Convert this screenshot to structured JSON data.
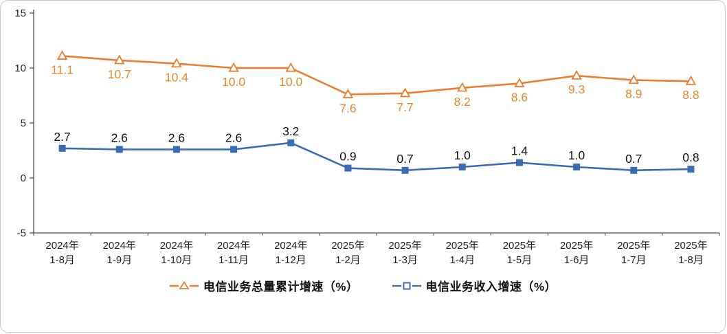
{
  "chart_data": {
    "type": "line",
    "categories": [
      {
        "year": "2024年",
        "period": "1-8月"
      },
      {
        "year": "2024年",
        "period": "1-9月"
      },
      {
        "year": "2024年",
        "period": "1-10月"
      },
      {
        "year": "2024年",
        "period": "1-11月"
      },
      {
        "year": "2024年",
        "period": "1-12月"
      },
      {
        "year": "2025年",
        "period": "1-2月"
      },
      {
        "year": "2025年",
        "period": "1-3月"
      },
      {
        "year": "2025年",
        "period": "1-4月"
      },
      {
        "year": "2025年",
        "period": "1-5月"
      },
      {
        "year": "2025年",
        "period": "1-6月"
      },
      {
        "year": "2025年",
        "period": "1-7月"
      },
      {
        "year": "2025年",
        "period": "1-8月"
      }
    ],
    "series": [
      {
        "name": "电信业务总量累计增速（%）",
        "values": [
          11.1,
          10.7,
          10.4,
          10.0,
          10.0,
          7.6,
          7.7,
          8.2,
          8.6,
          9.3,
          8.9,
          8.8
        ],
        "color": "#ED7D31",
        "marker": "triangle",
        "label_color": "#E8872B",
        "label_position": "below"
      },
      {
        "name": "电信业务收入增速（%）",
        "values": [
          2.7,
          2.6,
          2.6,
          2.6,
          3.2,
          0.9,
          0.7,
          1.0,
          1.4,
          1.0,
          0.7,
          0.8
        ],
        "color": "#3A6CB4",
        "marker": "square",
        "label_color": "#111111",
        "label_position": "above"
      }
    ],
    "ylim": [
      -5,
      15
    ],
    "yticks": [
      15,
      10,
      5,
      0,
      -5
    ],
    "grid": false,
    "legend_position": "bottom",
    "axis_color": "#4d4d4d",
    "tick_label_color": "#222222"
  }
}
